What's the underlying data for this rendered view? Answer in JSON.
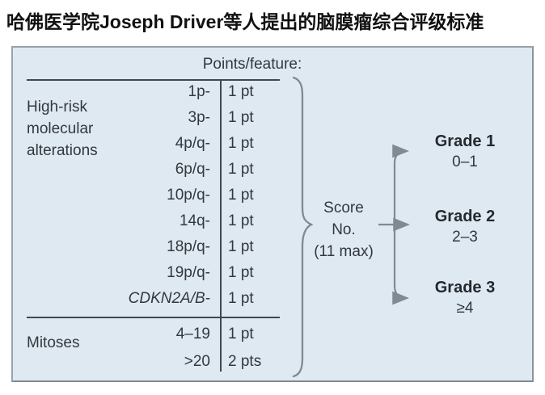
{
  "title": "哈佛医学院Joseph Driver等人提出的脑膜瘤综合评级标准",
  "panel": {
    "header": "Points/feature:",
    "categories": {
      "high_risk": "High-risk molecular alterations",
      "mitoses": "Mitoses"
    },
    "rows": [
      {
        "feature": "1p-",
        "points": "1 pt"
      },
      {
        "feature": "3p-",
        "points": "1 pt"
      },
      {
        "feature": "4p/q-",
        "points": "1 pt"
      },
      {
        "feature": "6p/q-",
        "points": "1 pt"
      },
      {
        "feature": "10p/q-",
        "points": "1 pt"
      },
      {
        "feature": "14q-",
        "points": "1 pt"
      },
      {
        "feature": "18p/q-",
        "points": "1 pt"
      },
      {
        "feature": "19p/q-",
        "points": "1 pt"
      },
      {
        "feature": "CDKN2A/B-",
        "points": "1 pt",
        "italic": true
      },
      {
        "feature": "4–19",
        "points": "1 pt"
      },
      {
        "feature": ">20",
        "points": "2 pts"
      }
    ],
    "score": {
      "line1": "Score",
      "line2": "No.",
      "line3": "(11 max)"
    },
    "grades": [
      {
        "label": "Grade 1",
        "range": "0–1"
      },
      {
        "label": "Grade 2",
        "range": "2–3"
      },
      {
        "label": "Grade 3",
        "range": "≥4"
      }
    ]
  },
  "icons": {
    "brace": "curly-brace",
    "arrows": "right-arrow"
  },
  "colors": {
    "panel_bg": "#dfe9f2",
    "panel_border": "#98a3ab",
    "rule": "#3f484f",
    "brace_arrow": "#7e8a94",
    "text": "#32383d",
    "title_text": "#111111"
  }
}
